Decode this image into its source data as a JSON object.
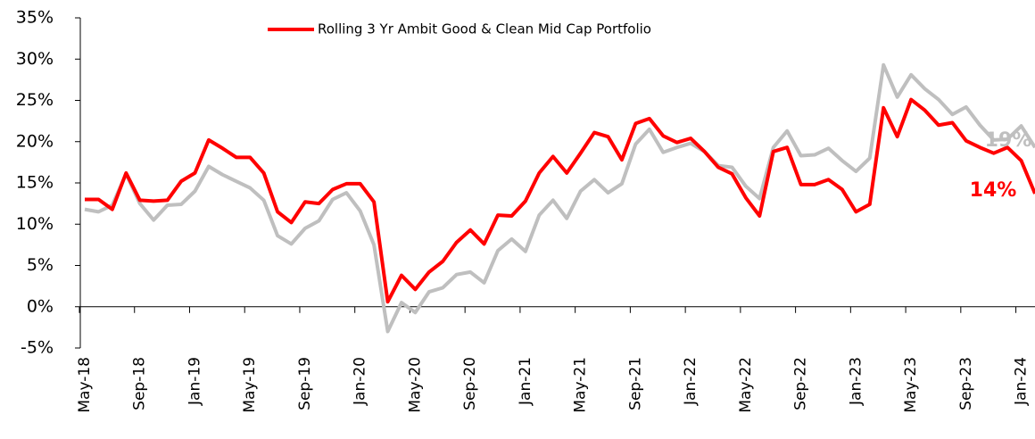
{
  "chart_data": {
    "type": "line",
    "categories": [
      "May-18",
      null,
      null,
      null,
      "Sep-18",
      null,
      null,
      null,
      "Jan-19",
      null,
      null,
      null,
      "May-19",
      null,
      null,
      null,
      "Sep-19",
      null,
      null,
      null,
      "Jan-20",
      null,
      null,
      null,
      "May-20",
      null,
      null,
      null,
      "Sep-20",
      null,
      null,
      null,
      "Jan-21",
      null,
      null,
      null,
      "May-21",
      null,
      null,
      null,
      "Sep-21",
      null,
      null,
      null,
      "Jan-22",
      null,
      null,
      null,
      "May-22",
      null,
      null,
      null,
      "Sep-22",
      null,
      null,
      null,
      "Jan-23",
      null,
      null,
      null,
      "May-23",
      null,
      null,
      null,
      "Sep-23",
      null,
      null,
      null,
      "Jan-24",
      null
    ],
    "series": [
      {
        "name": "Rolling 3 Yr Ambit Good & Clean Mid Cap Portfolio",
        "color": "#ff0000",
        "values": [
          13.0,
          13.0,
          11.8,
          16.2,
          12.9,
          12.8,
          12.9,
          15.2,
          16.2,
          20.2,
          19.2,
          18.1,
          18.1,
          16.2,
          11.5,
          10.2,
          12.7,
          12.5,
          14.2,
          14.9,
          14.9,
          12.7,
          0.6,
          3.8,
          2.1,
          4.2,
          5.5,
          7.8,
          9.3,
          7.6,
          11.1,
          11.0,
          12.8,
          16.2,
          18.2,
          16.2,
          18.6,
          21.1,
          20.6,
          17.8,
          22.2,
          22.8,
          20.7,
          19.9,
          20.4,
          18.8,
          16.9,
          16.1,
          13.2,
          11.0,
          18.8,
          19.3,
          14.8,
          14.8,
          15.4,
          14.2,
          11.5,
          12.4,
          24.1,
          20.6,
          25.1,
          23.8,
          22.0,
          22.3,
          20.1,
          19.3,
          18.6,
          19.3,
          17.7,
          13.7
        ]
      },
      {
        "color": "#bfbfbf",
        "values": [
          11.8,
          11.5,
          12.3,
          16.1,
          12.5,
          10.5,
          12.3,
          12.4,
          14.0,
          17.0,
          16.0,
          15.2,
          14.4,
          12.9,
          8.6,
          7.6,
          9.5,
          10.4,
          13.0,
          13.8,
          11.6,
          7.5,
          -3.0,
          0.5,
          -0.7,
          1.8,
          2.3,
          3.9,
          4.2,
          2.9,
          6.8,
          8.2,
          6.7,
          11.1,
          12.9,
          10.7,
          14.0,
          15.4,
          13.8,
          14.9,
          19.7,
          21.5,
          18.7,
          19.3,
          19.8,
          18.8,
          17.1,
          16.9,
          14.6,
          13.1,
          19.3,
          21.3,
          18.3,
          18.4,
          19.2,
          17.7,
          16.4,
          18.0,
          29.3,
          25.4,
          28.1,
          26.4,
          25.1,
          23.3,
          24.2,
          22.0,
          20.2,
          20.3,
          21.9,
          19.3
        ]
      }
    ],
    "ylim": [
      -5,
      35
    ],
    "yticks": [
      {
        "value": -5,
        "label": "-5%"
      },
      {
        "value": 0,
        "label": "0%"
      },
      {
        "value": 5,
        "label": "5%"
      },
      {
        "value": 10,
        "label": "10%"
      },
      {
        "value": 15,
        "label": "15%"
      },
      {
        "value": 20,
        "label": "20%"
      },
      {
        "value": 25,
        "label": "25%"
      },
      {
        "value": 30,
        "label": "30%"
      },
      {
        "value": 35,
        "label": "35%"
      }
    ],
    "annotations": [
      {
        "text": "19%",
        "color": "#bfbfbf"
      },
      {
        "text": "14%",
        "color": "#ff0000"
      }
    ],
    "legend": "top"
  }
}
